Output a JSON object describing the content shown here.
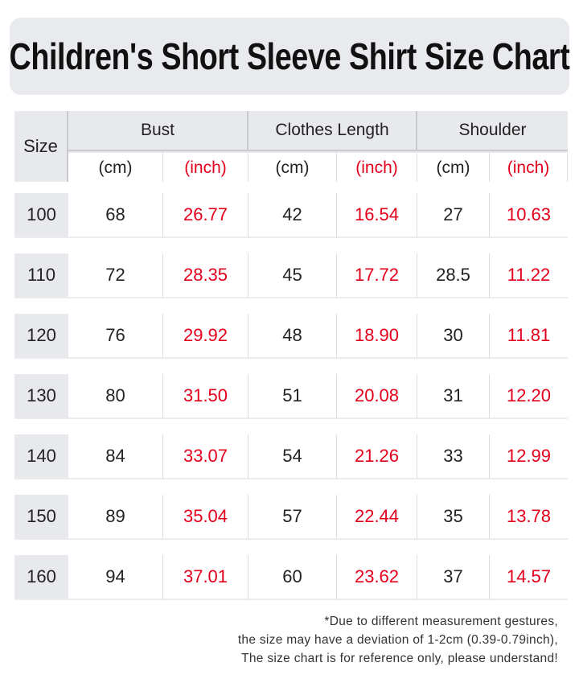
{
  "title": "Children's Short Sleeve Shirt Size Chart",
  "table": {
    "corner": "Size",
    "groups": [
      "Bust",
      "Clothes Length",
      "Shoulder"
    ],
    "units": [
      "(cm)",
      "(inch)",
      "(cm)",
      "(inch)",
      "(cm)",
      "(inch)"
    ],
    "rows": [
      [
        "100",
        "68",
        "26.77",
        "42",
        "16.54",
        "27",
        "10.63"
      ],
      [
        "110",
        "72",
        "28.35",
        "45",
        "17.72",
        "28.5",
        "11.22"
      ],
      [
        "120",
        "76",
        "29.92",
        "48",
        "18.90",
        "30",
        "11.81"
      ],
      [
        "130",
        "80",
        "31.50",
        "51",
        "20.08",
        "31",
        "12.20"
      ],
      [
        "140",
        "84",
        "33.07",
        "54",
        "21.26",
        "33",
        "12.99"
      ],
      [
        "150",
        "89",
        "35.04",
        "57",
        "22.44",
        "35",
        "13.78"
      ],
      [
        "160",
        "94",
        "37.01",
        "60",
        "23.62",
        "37",
        "14.57"
      ]
    ]
  },
  "footnote": [
    "*Due to different measurement gestures,",
    "the size may have a deviation of 1-2cm (0.39-0.79inch),",
    "The size chart is for reference only, please understand!"
  ]
}
